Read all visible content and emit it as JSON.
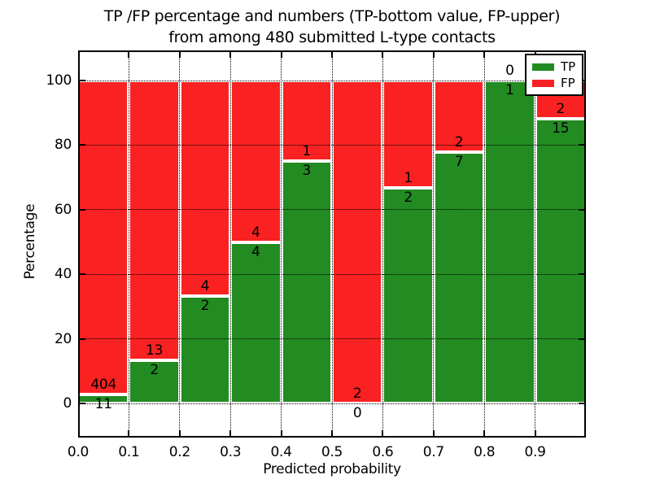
{
  "title": {
    "line1": "TP /FP percentage and numbers (TP-bottom value, FP-upper)",
    "line2": "from among 480 submitted L-type contacts"
  },
  "chart_data": {
    "type": "bar",
    "stacked": true,
    "normalized": "each bar scaled to 100%",
    "total_submitted": 480,
    "bin_edges": [
      0.0,
      0.1,
      0.2,
      0.3,
      0.4,
      0.5,
      0.6,
      0.7,
      0.8,
      0.9,
      1.0
    ],
    "x_tick_labels": [
      "0.0",
      "0.1",
      "0.2",
      "0.3",
      "0.4",
      "0.5",
      "0.6",
      "0.7",
      "0.8",
      "0.9"
    ],
    "series": [
      {
        "name": "TP",
        "color": "#228b22",
        "values": [
          11,
          2,
          2,
          4,
          3,
          0,
          2,
          7,
          1,
          15
        ]
      },
      {
        "name": "FP",
        "color": "#f92121",
        "values": [
          404,
          13,
          4,
          4,
          1,
          2,
          1,
          2,
          0,
          2
        ]
      }
    ],
    "tp_percent": [
      2.7,
      13.3,
      33.3,
      50.0,
      75.0,
      0.0,
      66.7,
      77.8,
      100.0,
      88.2
    ],
    "xlabel": "Predicted probability",
    "ylabel": "Percentage",
    "y_ticks": [
      0,
      20,
      40,
      60,
      80,
      100
    ],
    "ylim": [
      -10.6,
      109.3
    ],
    "xlim": [
      0.0,
      1.0
    ],
    "grid": "dotted black, drawn over bars",
    "bar_edge_color": "#ffffff",
    "legend": {
      "position": "upper right",
      "entries": [
        "TP",
        "FP"
      ]
    }
  }
}
